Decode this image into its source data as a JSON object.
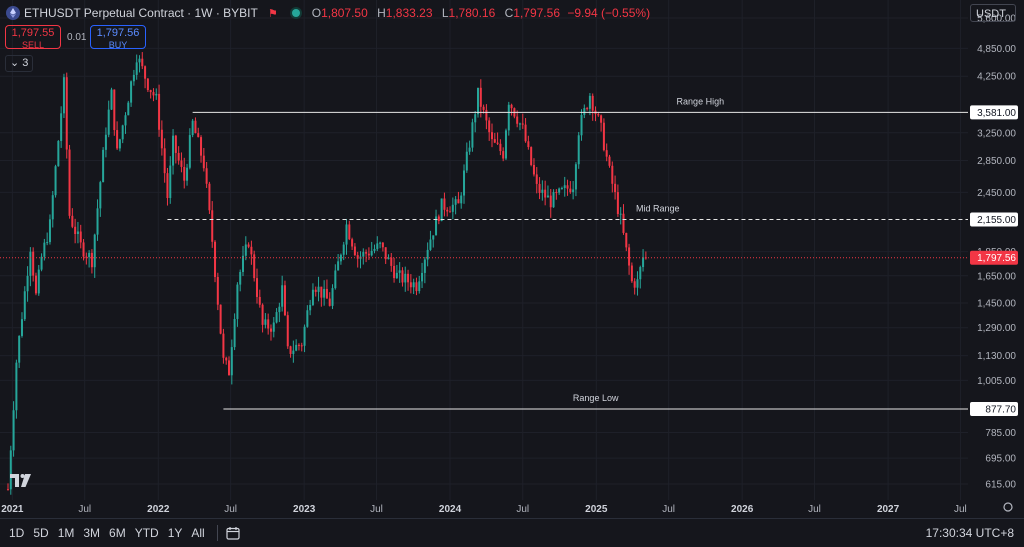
{
  "header": {
    "title": "ETHUSDT Perpetual Contract · 1W · BYBIT",
    "ohlc": {
      "o_key": "O",
      "o_val": "1,807.50",
      "h_key": "H",
      "h_val": "1,833.23",
      "l_key": "L",
      "l_val": "1,780.16",
      "c_key": "C",
      "c_val": "1,797.56",
      "change": "−9.94 (−0.55%)"
    },
    "sell_price": "1,797.55",
    "sell_label": "SELL",
    "spread": "0.01",
    "buy_price": "1,797.56",
    "buy_label": "BUY",
    "indicator_count": "3",
    "currency": "USDT"
  },
  "colors": {
    "up": "#26a69a",
    "down": "#f23645",
    "background": "#15161c",
    "level_line": "#e6e6e6"
  },
  "chart_data": {
    "type": "candlestick",
    "y_scale": "log",
    "ylim": [
      570,
      6100
    ],
    "xlim": [
      "2020-12-01",
      "2027-07-20"
    ],
    "y_ticks": [
      {
        "value": 5600,
        "label": "5,600.00"
      },
      {
        "value": 4850,
        "label": "4,850.00"
      },
      {
        "value": 4250,
        "label": "4,250.00"
      },
      {
        "value": 3250,
        "label": "3,250.00"
      },
      {
        "value": 2850,
        "label": "2,850.00"
      },
      {
        "value": 2450,
        "label": "2,450.00"
      },
      {
        "value": 1850,
        "label": "1,850.00"
      },
      {
        "value": 1650,
        "label": "1,650.00"
      },
      {
        "value": 1450,
        "label": "1,450.00"
      },
      {
        "value": 1290,
        "label": "1,290.00"
      },
      {
        "value": 1130,
        "label": "1,130.00"
      },
      {
        "value": 1005,
        "label": "1,005.00"
      },
      {
        "value": 785,
        "label": "785.00"
      },
      {
        "value": 695,
        "label": "695.00"
      },
      {
        "value": 615,
        "label": "615.00"
      }
    ],
    "x_ticks": [
      {
        "date": "2021-01-01",
        "label": "2021",
        "bold": true
      },
      {
        "date": "2021-07-01",
        "label": "Jul",
        "bold": false
      },
      {
        "date": "2022-01-01",
        "label": "2022",
        "bold": true
      },
      {
        "date": "2022-07-01",
        "label": "Jul",
        "bold": false
      },
      {
        "date": "2023-01-01",
        "label": "2023",
        "bold": true
      },
      {
        "date": "2023-07-01",
        "label": "Jul",
        "bold": false
      },
      {
        "date": "2024-01-01",
        "label": "2024",
        "bold": true
      },
      {
        "date": "2024-07-01",
        "label": "Jul",
        "bold": false
      },
      {
        "date": "2025-01-01",
        "label": "2025",
        "bold": true
      },
      {
        "date": "2025-07-01",
        "label": "Jul",
        "bold": false
      },
      {
        "date": "2026-01-01",
        "label": "2026",
        "bold": true
      },
      {
        "date": "2026-07-01",
        "label": "Jul",
        "bold": false
      },
      {
        "date": "2027-01-01",
        "label": "2027",
        "bold": true
      },
      {
        "date": "2027-07-01",
        "label": "Jul",
        "bold": false
      }
    ],
    "levels": [
      {
        "name": "Range High",
        "value": 3581.0,
        "label": "3,581.00",
        "style": "solid",
        "start": "2022-03-28"
      },
      {
        "name": "Mid Range",
        "value": 2155.0,
        "label": "2,155.00",
        "style": "dashed",
        "start": "2022-01-24"
      },
      {
        "name": "Range Low",
        "value": 877.7,
        "label": "877.70",
        "style": "solid",
        "start": "2022-06-13"
      }
    ],
    "last_price": {
      "value": 1797.56,
      "label": "1,797.56"
    },
    "keypoints": [
      [
        "2020-12-21",
        600
      ],
      [
        "2021-01-11",
        1100
      ],
      [
        "2021-02-15",
        1900
      ],
      [
        "2021-03-01",
        1500
      ],
      [
        "2021-03-15",
        1800
      ],
      [
        "2021-04-05",
        2100
      ],
      [
        "2021-05-10",
        4100
      ],
      [
        "2021-05-24",
        2200
      ],
      [
        "2021-06-21",
        1900
      ],
      [
        "2021-07-19",
        1780
      ],
      [
        "2021-08-23",
        3300
      ],
      [
        "2021-09-06",
        3900
      ],
      [
        "2021-09-20",
        2950
      ],
      [
        "2021-10-11",
        3600
      ],
      [
        "2021-11-08",
        4700
      ],
      [
        "2021-12-06",
        4100
      ],
      [
        "2021-12-27",
        3800
      ],
      [
        "2022-01-24",
        2400
      ],
      [
        "2022-02-07",
        3100
      ],
      [
        "2022-03-07",
        2600
      ],
      [
        "2022-03-28",
        3400
      ],
      [
        "2022-04-25",
        2800
      ],
      [
        "2022-05-16",
        1950
      ],
      [
        "2022-06-13",
        1100
      ],
      [
        "2022-06-27",
        1050
      ],
      [
        "2022-07-18",
        1600
      ],
      [
        "2022-08-15",
        1950
      ],
      [
        "2022-09-19",
        1300
      ],
      [
        "2022-10-17",
        1300
      ],
      [
        "2022-11-07",
        1550
      ],
      [
        "2022-11-21",
        1150
      ],
      [
        "2022-12-26",
        1200
      ],
      [
        "2023-01-23",
        1600
      ],
      [
        "2023-03-06",
        1450
      ],
      [
        "2023-04-17",
        2100
      ],
      [
        "2023-05-15",
        1800
      ],
      [
        "2023-07-10",
        1900
      ],
      [
        "2023-08-21",
        1650
      ],
      [
        "2023-10-09",
        1580
      ],
      [
        "2023-11-06",
        1900
      ],
      [
        "2023-12-11",
        2300
      ],
      [
        "2024-01-22",
        2300
      ],
      [
        "2024-02-19",
        3100
      ],
      [
        "2024-03-11",
        3900
      ],
      [
        "2024-04-15",
        3100
      ],
      [
        "2024-05-13",
        2950
      ],
      [
        "2024-05-27",
        3800
      ],
      [
        "2024-07-01",
        3300
      ],
      [
        "2024-08-05",
        2500
      ],
      [
        "2024-09-09",
        2350
      ],
      [
        "2024-10-07",
        2450
      ],
      [
        "2024-11-04",
        2550
      ],
      [
        "2024-11-18",
        3300
      ],
      [
        "2024-12-16",
        3900
      ],
      [
        "2025-01-13",
        3300
      ],
      [
        "2025-02-03",
        2700
      ],
      [
        "2025-03-03",
        2150
      ],
      [
        "2025-03-31",
        1600
      ],
      [
        "2025-04-14",
        1600
      ],
      [
        "2025-04-28",
        1800
      ],
      [
        "2025-05-05",
        1797.56
      ]
    ]
  },
  "range_buttons": [
    "1D",
    "5D",
    "1M",
    "3M",
    "6M",
    "YTD",
    "1Y",
    "All"
  ],
  "clock": "17:30:34 UTC+8",
  "icons": {
    "symbol": "ethereum-icon",
    "flag": "flag-icon",
    "status": "market-open-icon",
    "calendar": "calendar-icon",
    "settings": "gear-icon",
    "logo": "tradingview-logo"
  }
}
